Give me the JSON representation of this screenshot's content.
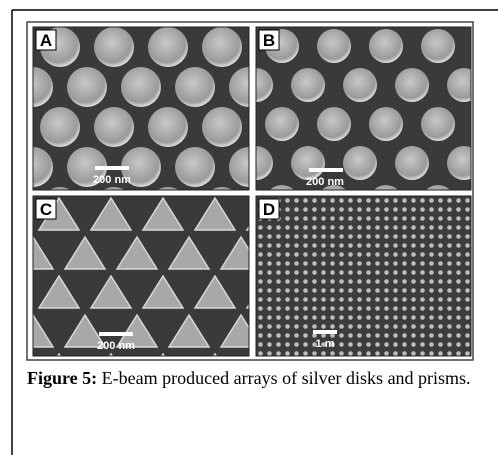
{
  "figure": {
    "panels": [
      {
        "label": "A",
        "scale_bar": "200 nm"
      },
      {
        "label": "B",
        "scale_bar": "200 nm"
      },
      {
        "label": "C",
        "scale_bar": "200 nm"
      },
      {
        "label": "D",
        "scale_bar": "1 m"
      }
    ],
    "caption": {
      "label": "Figure 5:",
      "text": "E-beam produced arrays of silver disks and prisms."
    }
  }
}
